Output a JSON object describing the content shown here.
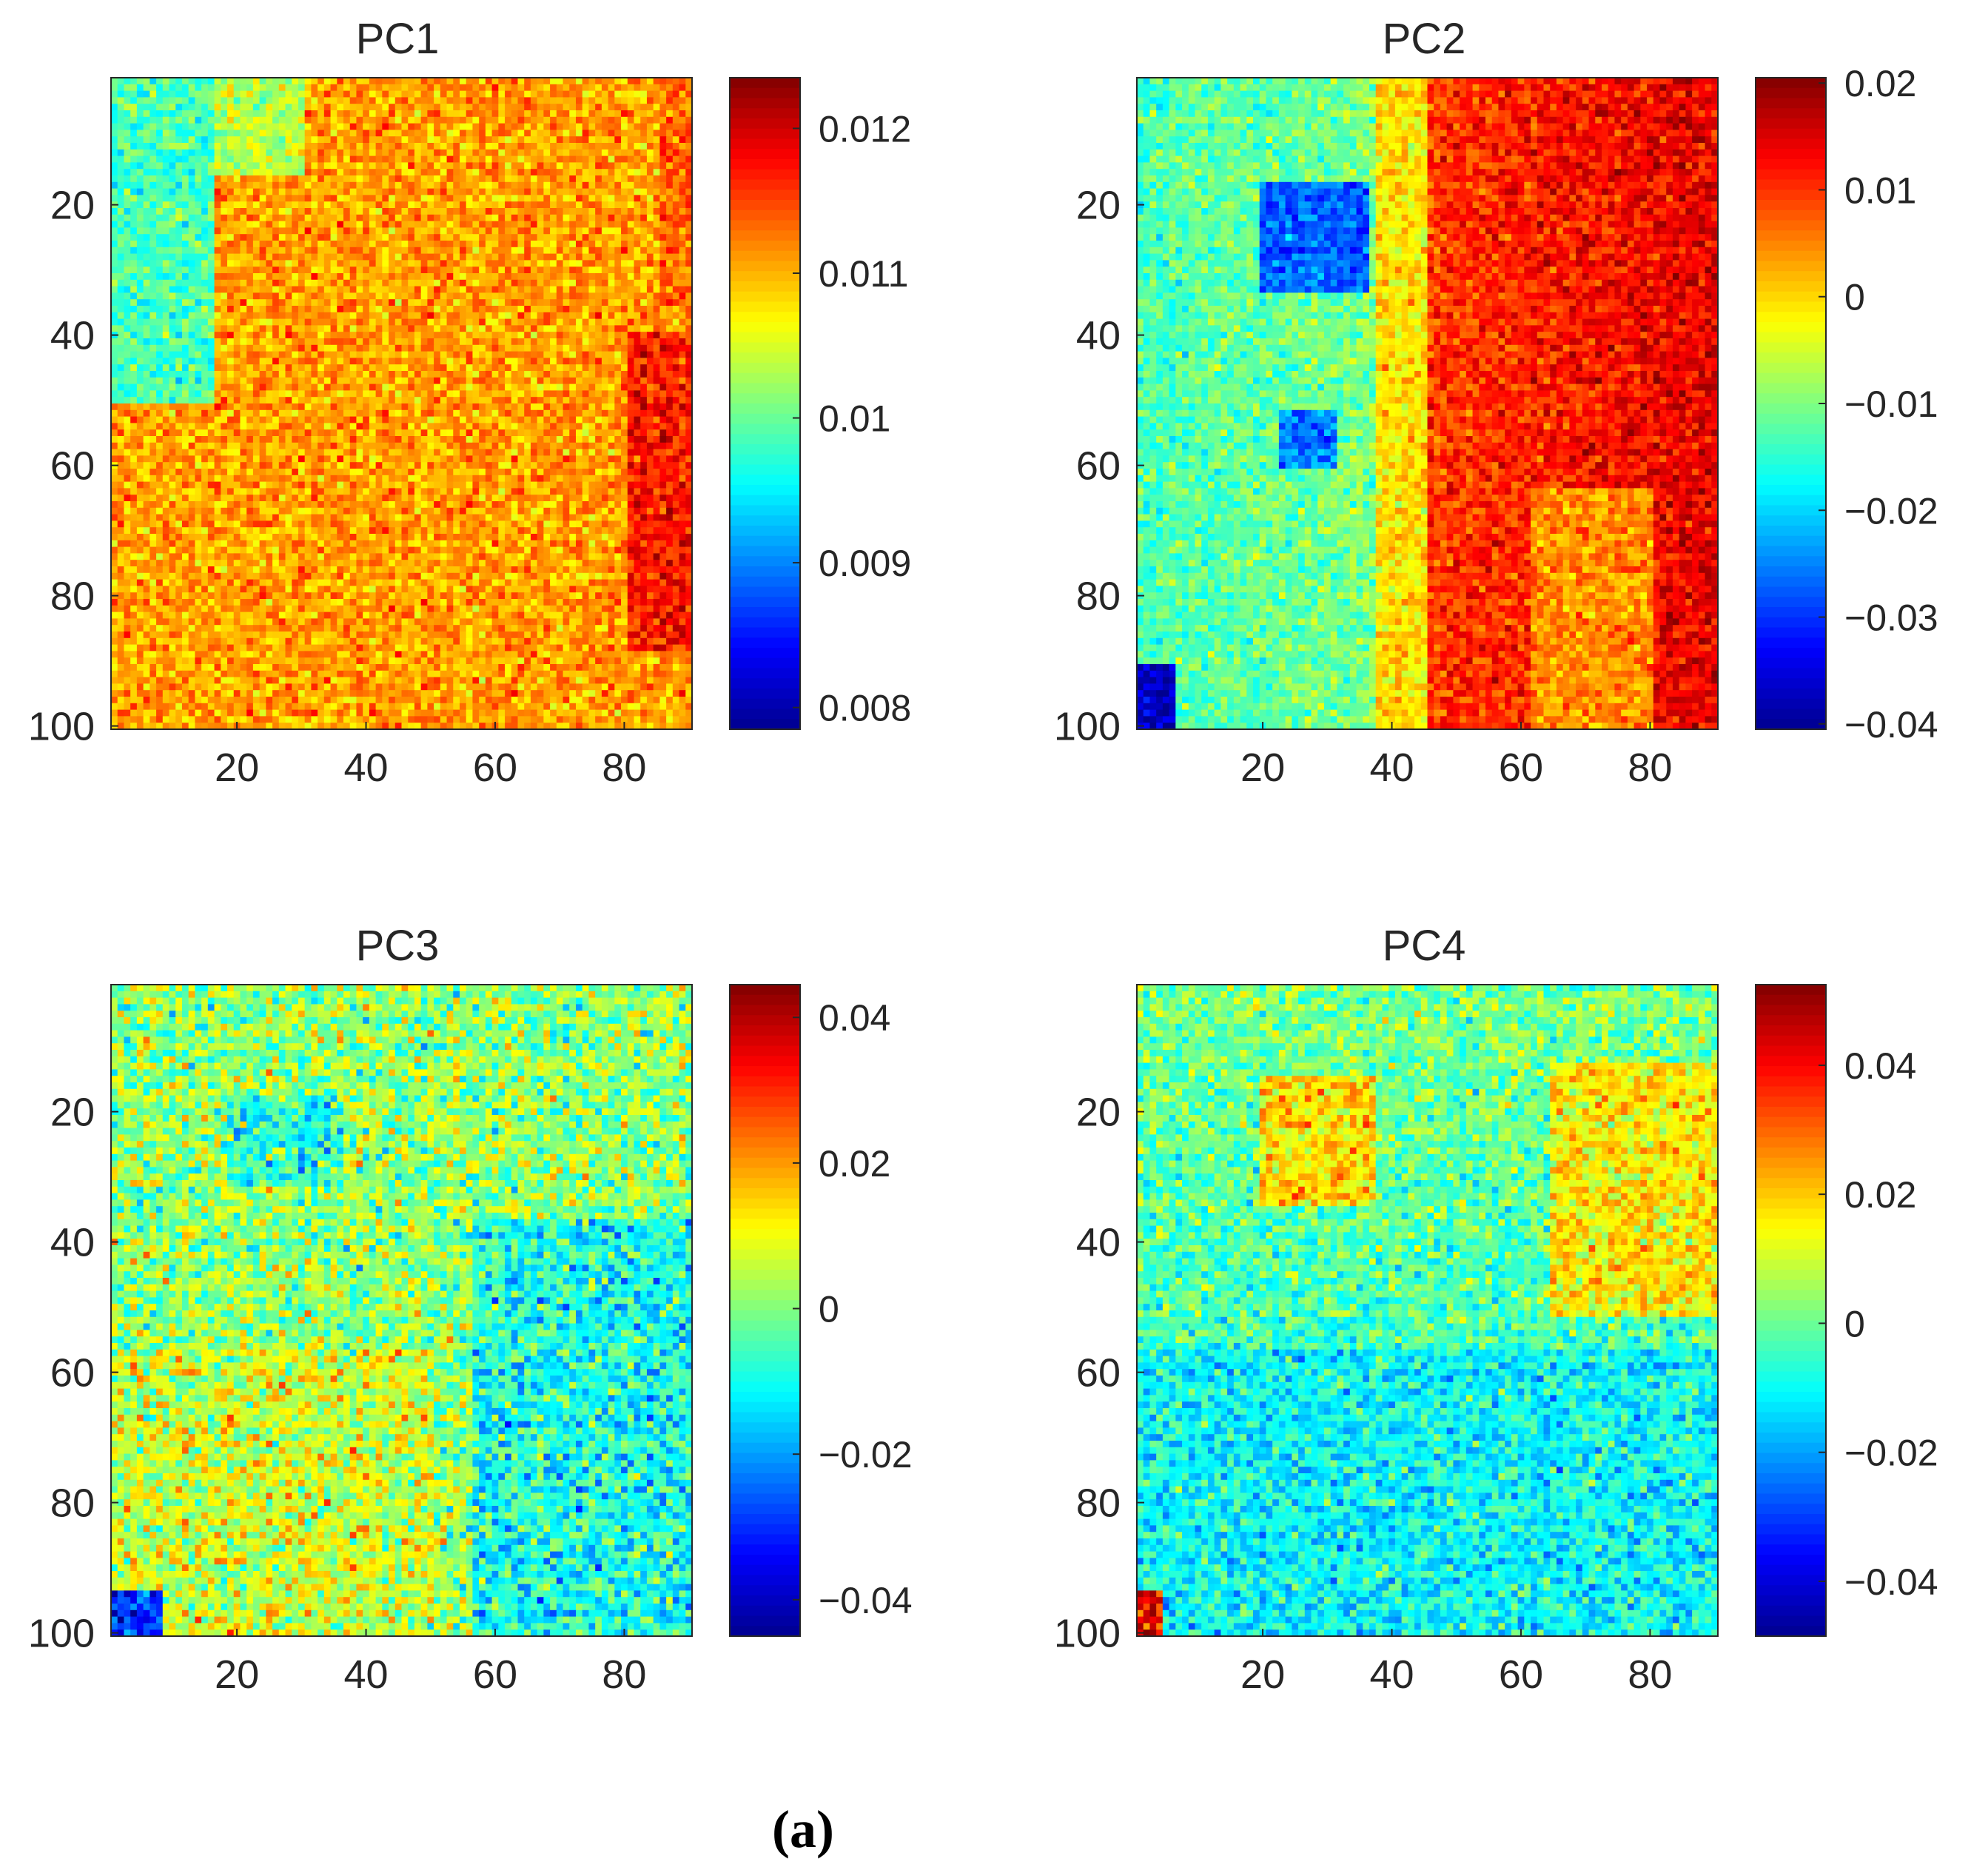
{
  "figure": {
    "caption": "(a)",
    "colormap": "jet",
    "colormap_stops": [
      "#00008f",
      "#0000ff",
      "#0080ff",
      "#00ffff",
      "#80ff80",
      "#ffff00",
      "#ff8000",
      "#ff0000",
      "#800000"
    ]
  },
  "chart_data": [
    {
      "type": "heatmap",
      "title": "PC1",
      "x_ticks": [
        "20",
        "40",
        "60",
        "80"
      ],
      "y_ticks": [
        "20",
        "40",
        "60",
        "80",
        "100"
      ],
      "xlim": [
        1,
        90
      ],
      "ylim": [
        1,
        100
      ],
      "y_reversed": true,
      "grid": false,
      "colorbar": {
        "range": [
          0.00785,
          0.01235
        ],
        "ticks": [
          0.008,
          0.009,
          0.01,
          0.011,
          0.012
        ],
        "tick_labels": [
          "0.008",
          "0.009",
          "0.01",
          "0.011",
          "0.012"
        ]
      },
      "description_pattern": "mostly yellow-orange with green-cyan band in upper-left columns 1-15; red blotch on right edge rows 40-85"
    },
    {
      "type": "heatmap",
      "title": "PC2",
      "x_ticks": [
        "20",
        "40",
        "60",
        "80"
      ],
      "y_ticks": [
        "20",
        "40",
        "60",
        "80",
        "100"
      ],
      "xlim": [
        1,
        90
      ],
      "ylim": [
        1,
        100
      ],
      "y_reversed": true,
      "grid": false,
      "colorbar": {
        "range": [
          -0.0405,
          0.0205
        ],
        "ticks": [
          -0.04,
          -0.03,
          -0.02,
          -0.01,
          0,
          0.01,
          0.02
        ],
        "tick_labels": [
          "−0.04",
          "−0.03",
          "−0.02",
          "−0.01",
          "0",
          "0.01",
          "0.02"
        ]
      },
      "description_pattern": "cyan-green on left half, red on right half (columns 45-90); blue squares at columns 20-35 rows 17-32 and columns 22-30 rows 52-60; dark blue corner bottom-left"
    },
    {
      "type": "heatmap",
      "title": "PC3",
      "x_ticks": [
        "20",
        "40",
        "60",
        "80"
      ],
      "y_ticks": [
        "20",
        "40",
        "60",
        "80",
        "100"
      ],
      "xlim": [
        1,
        90
      ],
      "ylim": [
        1,
        100
      ],
      "y_reversed": true,
      "grid": false,
      "colorbar": {
        "range": [
          -0.045,
          0.0445
        ],
        "ticks": [
          -0.04,
          -0.02,
          0,
          0.02,
          0.04
        ],
        "tick_labels": [
          "−0.04",
          "−0.02",
          "0",
          "0.02",
          "0.04"
        ]
      },
      "description_pattern": "noisy green-yellow-cyan; bluish region lower-right; dark blue speckles bottom-left"
    },
    {
      "type": "heatmap",
      "title": "PC4",
      "x_ticks": [
        "20",
        "40",
        "60",
        "80"
      ],
      "y_ticks": [
        "20",
        "40",
        "60",
        "80",
        "100"
      ],
      "xlim": [
        1,
        90
      ],
      "ylim": [
        1,
        100
      ],
      "y_reversed": true,
      "grid": false,
      "colorbar": {
        "range": [
          -0.0485,
          0.0525
        ],
        "ticks": [
          -0.04,
          -0.02,
          0,
          0.02,
          0.04
        ],
        "tick_labels": [
          "−0.04",
          "−0.02",
          "0",
          "0.02",
          "0.04"
        ]
      },
      "description_pattern": "green-cyan top, cyan-blue bottom half; yellow square columns 20-35 rows 15-32; yellow patch right columns 65-90 rows 15-50; red corner bottom-left"
    }
  ]
}
